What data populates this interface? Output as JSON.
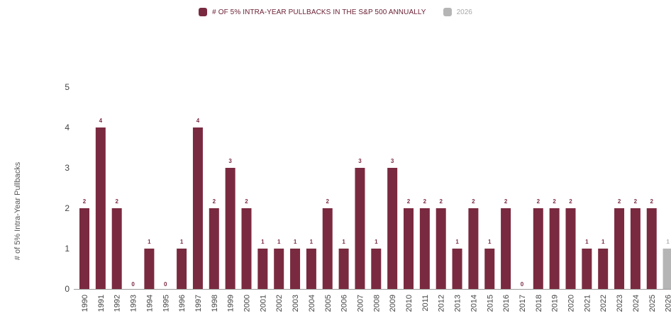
{
  "colors": {
    "primary": "#7a2a40",
    "secondary": "#b5b5b5",
    "label_primary": "#7a2a40",
    "label_secondary": "#b0b0b0",
    "axis": "#9a9a9a",
    "tick_text": "#444444"
  },
  "chart_data": {
    "type": "bar",
    "xlabel": "",
    "ylabel": "# of 5% Intra-Year Pullbacks",
    "ylim": [
      0,
      5
    ],
    "yticks": [
      "0",
      "1",
      "2",
      "3",
      "4",
      "5"
    ],
    "grid": false,
    "legend_position": "top-center",
    "categories": [
      "1990",
      "1991",
      "1992",
      "1993",
      "1994",
      "1995",
      "1996",
      "1997",
      "1998",
      "1999",
      "2000",
      "2001",
      "2002",
      "2003",
      "2004",
      "2005",
      "2006",
      "2007",
      "2008",
      "2009",
      "2010",
      "2011",
      "2012",
      "2013",
      "2014",
      "2015",
      "2016",
      "2017",
      "2018",
      "2019",
      "2020",
      "2021",
      "2022",
      "2023",
      "2024",
      "2025",
      "2026"
    ],
    "series": [
      {
        "name": "# OF 5% INTRA-YEAR PULLBACKS IN THE S&P 500 ANNUALLY",
        "color": "#7a2a40",
        "values": [
          2,
          4,
          2,
          0,
          1,
          0,
          1,
          4,
          2,
          3,
          2,
          1,
          1,
          1,
          1,
          2,
          1,
          3,
          1,
          3,
          2,
          2,
          2,
          1,
          2,
          1,
          2,
          0,
          2,
          2,
          2,
          1,
          1,
          2,
          2,
          2,
          null
        ]
      },
      {
        "name": "2026",
        "color": "#b5b5b5",
        "values": [
          null,
          null,
          null,
          null,
          null,
          null,
          null,
          null,
          null,
          null,
          null,
          null,
          null,
          null,
          null,
          null,
          null,
          null,
          null,
          null,
          null,
          null,
          null,
          null,
          null,
          null,
          null,
          null,
          null,
          null,
          null,
          null,
          null,
          null,
          null,
          null,
          1
        ]
      }
    ]
  }
}
